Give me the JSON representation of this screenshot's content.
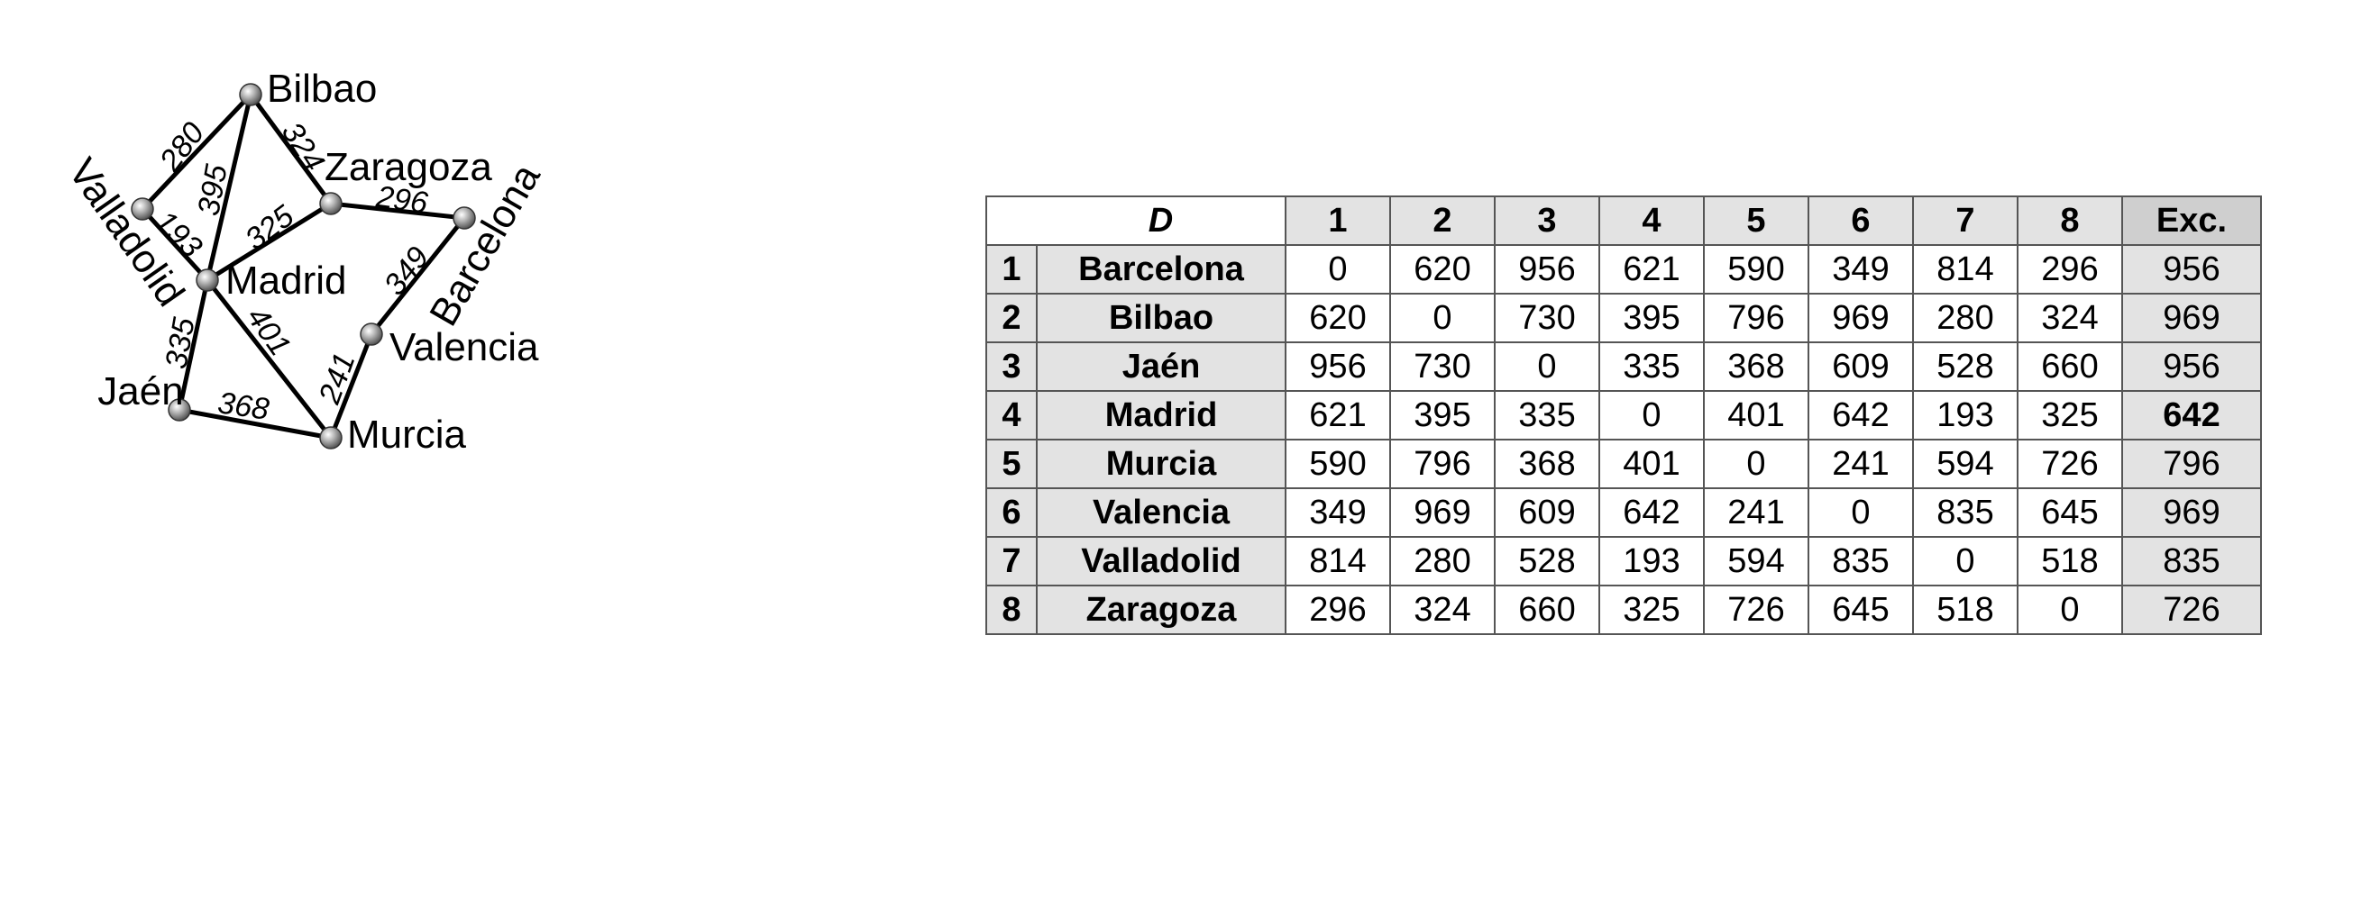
{
  "graph": {
    "nodes": [
      {
        "id": "bilbao",
        "label": "Bilbao"
      },
      {
        "id": "zaragoza",
        "label": "Zaragoza"
      },
      {
        "id": "valladolid",
        "label": "Valladolid"
      },
      {
        "id": "madrid",
        "label": "Madrid"
      },
      {
        "id": "barcelona",
        "label": "Barcelona"
      },
      {
        "id": "valencia",
        "label": "Valencia"
      },
      {
        "id": "jaen",
        "label": "Jaén"
      },
      {
        "id": "murcia",
        "label": "Murcia"
      }
    ],
    "edges": [
      {
        "from": "valladolid",
        "to": "bilbao",
        "weight": "280"
      },
      {
        "from": "bilbao",
        "to": "zaragoza",
        "weight": "324"
      },
      {
        "from": "bilbao",
        "to": "madrid",
        "weight": "395"
      },
      {
        "from": "valladolid",
        "to": "madrid",
        "weight": "193"
      },
      {
        "from": "madrid",
        "to": "zaragoza",
        "weight": "325"
      },
      {
        "from": "zaragoza",
        "to": "barcelona",
        "weight": "296"
      },
      {
        "from": "barcelona",
        "to": "valencia",
        "weight": "349"
      },
      {
        "from": "madrid",
        "to": "jaen",
        "weight": "335"
      },
      {
        "from": "madrid",
        "to": "murcia",
        "weight": "401"
      },
      {
        "from": "jaen",
        "to": "murcia",
        "weight": "368"
      },
      {
        "from": "valencia",
        "to": "murcia",
        "weight": "241"
      }
    ]
  },
  "table": {
    "header_label": "D",
    "column_numbers": [
      "1",
      "2",
      "3",
      "4",
      "5",
      "6",
      "7",
      "8"
    ],
    "exc_label": "Exc.",
    "rows": [
      {
        "index": "1",
        "name": "Barcelona",
        "values": [
          "0",
          "620",
          "956",
          "621",
          "590",
          "349",
          "814",
          "296"
        ],
        "exc": "956"
      },
      {
        "index": "2",
        "name": "Bilbao",
        "values": [
          "620",
          "0",
          "730",
          "395",
          "796",
          "969",
          "280",
          "324"
        ],
        "exc": "969"
      },
      {
        "index": "3",
        "name": "Jaén",
        "values": [
          "956",
          "730",
          "0",
          "335",
          "368",
          "609",
          "528",
          "660"
        ],
        "exc": "956"
      },
      {
        "index": "4",
        "name": "Madrid",
        "values": [
          "621",
          "395",
          "335",
          "0",
          "401",
          "642",
          "193",
          "325"
        ],
        "exc": "642",
        "exc_bold": true
      },
      {
        "index": "5",
        "name": "Murcia",
        "values": [
          "590",
          "796",
          "368",
          "401",
          "0",
          "241",
          "594",
          "726"
        ],
        "exc": "796"
      },
      {
        "index": "6",
        "name": "Valencia",
        "values": [
          "349",
          "969",
          "609",
          "642",
          "241",
          "0",
          "835",
          "645"
        ],
        "exc": "969"
      },
      {
        "index": "7",
        "name": "Valladolid",
        "values": [
          "814",
          "280",
          "528",
          "193",
          "594",
          "835",
          "0",
          "518"
        ],
        "exc": "835"
      },
      {
        "index": "8",
        "name": "Zaragoza",
        "values": [
          "296",
          "324",
          "660",
          "325",
          "726",
          "645",
          "518",
          "0"
        ],
        "exc": "726"
      }
    ]
  }
}
